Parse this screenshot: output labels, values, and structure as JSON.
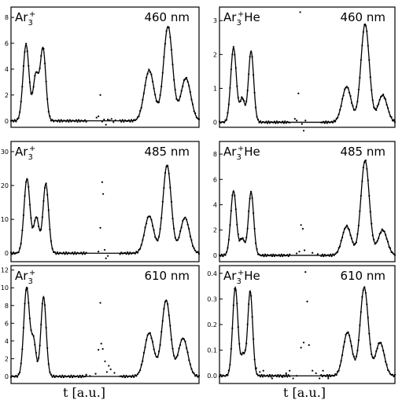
{
  "chart_data": [
    {
      "type": "line",
      "ion": "Ar",
      "subscript": "3",
      "superscript": "+",
      "suffix": "",
      "wavelength": "460 nm",
      "ylim": [
        -0.5,
        8.8
      ],
      "yticks": [
        0,
        2,
        4,
        6,
        8
      ],
      "yticklabels": [
        "0",
        "2",
        "4",
        "6",
        "8"
      ],
      "xlim": [
        0,
        100
      ],
      "peaks": [
        [
          8.0,
          5.9,
          1.6
        ],
        [
          13.2,
          3.5,
          1.4
        ],
        [
          17.0,
          5.6,
          1.5
        ],
        [
          73.5,
          3.9,
          2.6
        ],
        [
          83.5,
          7.3,
          2.4
        ],
        [
          93.0,
          3.3,
          2.6
        ]
      ],
      "scatter_extra": [
        [
          45.5,
          0.25
        ],
        [
          46.5,
          0.35
        ],
        [
          47.5,
          2.0
        ],
        [
          48.5,
          -0.05
        ],
        [
          49.5,
          0.1
        ],
        [
          50.5,
          -0.3
        ],
        [
          51.5,
          0.1
        ],
        [
          52.5,
          0.05
        ],
        [
          53.5,
          0.15
        ],
        [
          54.5,
          -0.1
        ],
        [
          55.5,
          0.05
        ]
      ]
    },
    {
      "type": "line",
      "ion": "Ar",
      "subscript": "3",
      "superscript": "+",
      "suffix": "He",
      "wavelength": "460 nm",
      "ylim": [
        -0.15,
        3.4
      ],
      "yticks": [
        0,
        1,
        2,
        3
      ],
      "yticklabels": [
        "0",
        "1",
        "2",
        "3"
      ],
      "xlim": [
        0,
        100
      ],
      "peaks": [
        [
          8.0,
          2.2,
          1.6
        ],
        [
          13.0,
          0.7,
          1.4
        ],
        [
          18.0,
          2.1,
          1.5
        ],
        [
          72.5,
          1.05,
          2.6
        ],
        [
          83.0,
          2.9,
          2.4
        ],
        [
          93.0,
          0.8,
          2.6
        ]
      ],
      "scatter_extra": [
        [
          43.0,
          0.1
        ],
        [
          44.0,
          0.05
        ],
        [
          45.0,
          0.85
        ],
        [
          46.0,
          3.25
        ],
        [
          47.0,
          -0.05
        ],
        [
          48.0,
          -0.25
        ],
        [
          49.0,
          0.05
        ]
      ]
    },
    {
      "type": "line",
      "ion": "Ar",
      "subscript": "3",
      "superscript": "+",
      "suffix": "",
      "wavelength": "485 nm",
      "ylim": [
        -2.5,
        33
      ],
      "yticks": [
        0,
        10,
        20,
        30
      ],
      "yticklabels": [
        "0",
        "10",
        "20",
        "30"
      ],
      "xlim": [
        0,
        100
      ],
      "peaks": [
        [
          8.5,
          22.0,
          1.6
        ],
        [
          13.5,
          10.5,
          1.4
        ],
        [
          18.5,
          20.5,
          1.5
        ],
        [
          73.5,
          11.0,
          2.4
        ],
        [
          83.0,
          26.0,
          2.2
        ],
        [
          92.5,
          10.5,
          2.4
        ]
      ],
      "scatter_extra": [
        [
          46.5,
          0.5
        ],
        [
          47.5,
          7.5
        ],
        [
          48.5,
          21.0
        ],
        [
          49.0,
          17.5
        ],
        [
          49.8,
          1.0
        ],
        [
          50.5,
          -1.5
        ],
        [
          51.5,
          -0.8
        ]
      ]
    },
    {
      "type": "line",
      "ion": "Ar",
      "subscript": "3",
      "superscript": "+",
      "suffix": "He",
      "wavelength": "485 nm",
      "ylim": [
        -0.5,
        9.0
      ],
      "yticks": [
        0,
        2,
        4,
        6,
        8
      ],
      "yticklabels": [
        "0",
        "2",
        "4",
        "6",
        "8"
      ],
      "xlim": [
        0,
        100
      ],
      "peaks": [
        [
          8.0,
          5.1,
          1.6
        ],
        [
          13.0,
          1.3,
          1.4
        ],
        [
          18.0,
          5.0,
          1.5
        ],
        [
          72.5,
          2.3,
          2.6
        ],
        [
          83.0,
          7.5,
          2.4
        ],
        [
          93.0,
          2.0,
          2.6
        ]
      ],
      "scatter_extra": [
        [
          44.0,
          0.15
        ],
        [
          45.5,
          0.3
        ],
        [
          46.5,
          2.4
        ],
        [
          47.5,
          2.1
        ],
        [
          48.5,
          0.4
        ],
        [
          53.0,
          0.2
        ],
        [
          56.0,
          0.1
        ]
      ]
    },
    {
      "type": "line",
      "ion": "Ar",
      "subscript": "3",
      "superscript": "+",
      "suffix": "",
      "wavelength": "610 nm",
      "ylim": [
        -0.8,
        12.5
      ],
      "yticks": [
        0,
        2,
        4,
        6,
        8,
        10,
        12
      ],
      "yticklabels": [
        "0",
        "2",
        "4",
        "6",
        "8",
        "10",
        "12"
      ],
      "xlim": [
        0,
        100
      ],
      "peaks": [
        [
          8.3,
          10.0,
          1.5
        ],
        [
          12.0,
          4.0,
          1.3
        ],
        [
          17.3,
          9.0,
          1.4
        ],
        [
          73.5,
          4.9,
          2.5
        ],
        [
          82.5,
          8.6,
          2.3
        ],
        [
          91.5,
          4.3,
          2.5
        ]
      ],
      "scatter_extra": [
        [
          38.0,
          0.1
        ],
        [
          40.0,
          0.2
        ],
        [
          42.0,
          0.05
        ],
        [
          45.0,
          0.3
        ],
        [
          46.5,
          3.0
        ],
        [
          47.5,
          8.3
        ],
        [
          48.0,
          3.7
        ],
        [
          48.8,
          3.1
        ],
        [
          50.0,
          1.7
        ],
        [
          51.0,
          0.5
        ],
        [
          52.0,
          1.2
        ],
        [
          53.0,
          0.8
        ],
        [
          55.0,
          0.4
        ]
      ]
    },
    {
      "type": "line",
      "ion": "Ar",
      "subscript": "3",
      "superscript": "+",
      "suffix": "He",
      "wavelength": "610 nm",
      "ylim": [
        -0.03,
        0.43
      ],
      "yticks": [
        0.0,
        0.1,
        0.2,
        0.3,
        0.4
      ],
      "yticklabels": [
        "0.0",
        "0.1",
        "0.2",
        "0.3",
        "0.4"
      ],
      "xlim": [
        0,
        100
      ],
      "peaks": [
        [
          9.0,
          0.345,
          1.5
        ],
        [
          13.5,
          0.08,
          1.3
        ],
        [
          17.5,
          0.33,
          1.4
        ],
        [
          73.0,
          0.17,
          2.5
        ],
        [
          82.5,
          0.345,
          2.3
        ],
        [
          91.5,
          0.13,
          2.5
        ]
      ],
      "scatter_extra": [
        [
          21.0,
          0.03
        ],
        [
          23.0,
          0.015
        ],
        [
          25.0,
          0.02
        ],
        [
          30.0,
          -0.01
        ],
        [
          36.0,
          -0.005
        ],
        [
          38.0,
          0.01
        ],
        [
          40.0,
          0.02
        ],
        [
          42.0,
          -0.01
        ],
        [
          44.0,
          0.0
        ],
        [
          46.5,
          0.11
        ],
        [
          48.0,
          0.13
        ],
        [
          49.0,
          0.405
        ],
        [
          50.0,
          0.29
        ],
        [
          51.0,
          0.12
        ],
        [
          53.0,
          0.02
        ],
        [
          55.0,
          0.01
        ],
        [
          57.0,
          -0.01
        ],
        [
          59.0,
          0.02
        ],
        [
          62.0,
          -0.01
        ]
      ]
    }
  ],
  "axis_labels": {
    "x_left": "t [a.u.]",
    "x_right": "t [a.u.]"
  },
  "colors": {
    "ink": "#000000",
    "paper": "#ffffff"
  }
}
